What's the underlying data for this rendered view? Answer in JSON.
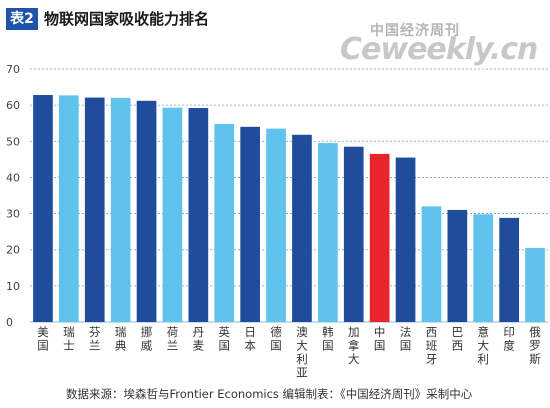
{
  "header": {
    "badge": "表2",
    "title": "物联网国家吸收能力排名"
  },
  "brand": {
    "cn": "中国经济周刊",
    "en": "Ceweekly.cn"
  },
  "source_note": "数据来源：埃森哲与Frontier Economics  编辑制表：《中国经济周刊》采制中心",
  "colors": {
    "dark_blue": "#1f4d9b",
    "light_blue": "#5fc3ee",
    "highlight_red": "#e8242d",
    "gridline": "#6ba3cf"
  },
  "chart_data": {
    "type": "bar",
    "title": "物联网国家吸收能力排名",
    "xlabel": "",
    "ylabel": "",
    "ylim": [
      0,
      70
    ],
    "yticks": [
      0,
      10,
      20,
      30,
      40,
      50,
      60,
      70
    ],
    "grid": true,
    "categories": [
      "美国",
      "瑞士",
      "芬兰",
      "瑞典",
      "挪威",
      "荷兰",
      "丹麦",
      "英国",
      "日本",
      "德国",
      "澳大利亚",
      "韩国",
      "加拿大",
      "中国",
      "法国",
      "西班牙",
      "巴西",
      "意大利",
      "印度",
      "俄罗斯"
    ],
    "values": [
      62.8,
      62.7,
      62.1,
      62.0,
      61.2,
      59.3,
      59.2,
      54.8,
      54.0,
      53.5,
      51.8,
      49.5,
      48.5,
      46.5,
      45.5,
      32.0,
      31.0,
      29.8,
      28.8,
      20.5
    ],
    "bar_colors": [
      "dark",
      "light",
      "dark",
      "light",
      "dark",
      "light",
      "dark",
      "light",
      "dark",
      "light",
      "dark",
      "light",
      "dark",
      "red",
      "dark",
      "light",
      "dark",
      "light",
      "dark",
      "light"
    ]
  }
}
